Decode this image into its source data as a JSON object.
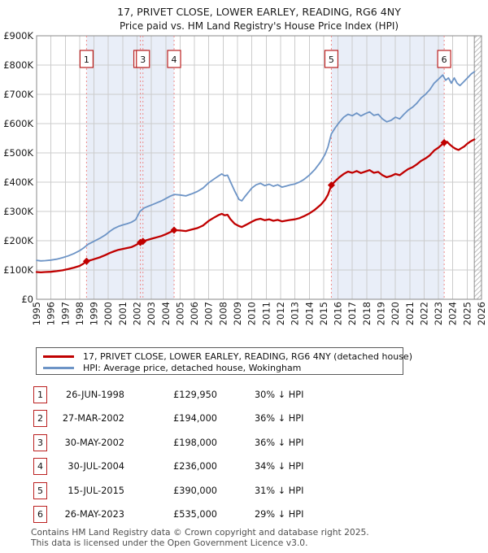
{
  "title": "17, PRIVET CLOSE, LOWER EARLEY, READING, RG6 4NY",
  "subtitle": "Price paid vs. HM Land Registry's House Price Index (HPI)",
  "chart_data": {
    "type": "line",
    "x_range": [
      1995,
      2026
    ],
    "x_tick_labels": [
      "1995",
      "1996",
      "1997",
      "1998",
      "1999",
      "2000",
      "2001",
      "2002",
      "2003",
      "2004",
      "2005",
      "2006",
      "2007",
      "2008",
      "2009",
      "2010",
      "2011",
      "2012",
      "2013",
      "2014",
      "2015",
      "2016",
      "2017",
      "2018",
      "2019",
      "2020",
      "2021",
      "2022",
      "2023",
      "2024",
      "2025",
      "2026"
    ],
    "y_range_gbp": [
      0,
      900000
    ],
    "y_tick_labels": [
      "£0",
      "£100K",
      "£200K",
      "£300K",
      "£400K",
      "£500K",
      "£600K",
      "£700K",
      "£800K",
      "£900K"
    ],
    "units": "GBP thousands",
    "grid": true,
    "legend_position": "bottom",
    "future_hatch_start": 2025.5,
    "ownership_bands": [
      [
        1998.48,
        2004.58
      ],
      [
        2015.54,
        2023.4
      ]
    ],
    "colors": {
      "price": "#c00000",
      "hpi": "#6d94c6",
      "grid": "#cccccc",
      "band": "#e9eef8",
      "dashed": "#ee8a8a",
      "box_border": "#bb2020",
      "plot_border": "#8a8a8a",
      "hatch": "#bbbbbb"
    },
    "sales": [
      {
        "num": "1",
        "date": "26-JUN-1998",
        "year": 1998.48,
        "price_k": 129.95,
        "price_label": "£129,950",
        "vs_hpi": "30% ↓ HPI"
      },
      {
        "num": "2",
        "date": "27-MAR-2002",
        "year": 2002.23,
        "price_k": 194,
        "price_label": "£194,000",
        "vs_hpi": "36% ↓ HPI"
      },
      {
        "num": "3",
        "date": "30-MAY-2002",
        "year": 2002.41,
        "price_k": 198,
        "price_label": "£198,000",
        "vs_hpi": "36% ↓ HPI"
      },
      {
        "num": "4",
        "date": "30-JUL-2004",
        "year": 2004.58,
        "price_k": 236,
        "price_label": "£236,000",
        "vs_hpi": "34% ↓ HPI"
      },
      {
        "num": "5",
        "date": "15-JUL-2015",
        "year": 2015.54,
        "price_k": 390,
        "price_label": "£390,000",
        "vs_hpi": "31% ↓ HPI"
      },
      {
        "num": "6",
        "date": "26-MAY-2023",
        "year": 2023.4,
        "price_k": 535,
        "price_label": "£535,000",
        "vs_hpi": "29% ↓ HPI"
      }
    ],
    "series": [
      {
        "name": "17, PRIVET CLOSE, LOWER EARLEY, READING, RG6 4NY (detached house)",
        "color": "#c00000",
        "points": [
          [
            1995.0,
            93
          ],
          [
            1995.3,
            92
          ],
          [
            1995.6,
            93
          ],
          [
            1996.0,
            94
          ],
          [
            1996.4,
            96
          ],
          [
            1996.8,
            99
          ],
          [
            1997.2,
            103
          ],
          [
            1997.6,
            108
          ],
          [
            1998.0,
            114
          ],
          [
            1998.25,
            121
          ],
          [
            1998.48,
            130
          ],
          [
            1998.8,
            134
          ],
          [
            1999.0,
            137
          ],
          [
            1999.4,
            143
          ],
          [
            1999.8,
            151
          ],
          [
            2000.1,
            158
          ],
          [
            2000.4,
            164
          ],
          [
            2000.7,
            169
          ],
          [
            2001.0,
            172
          ],
          [
            2001.3,
            175
          ],
          [
            2001.6,
            178
          ],
          [
            2001.9,
            185
          ],
          [
            2002.23,
            194
          ],
          [
            2002.41,
            198
          ],
          [
            2002.8,
            204
          ],
          [
            2003.1,
            208
          ],
          [
            2003.4,
            212
          ],
          [
            2003.7,
            216
          ],
          [
            2004.0,
            222
          ],
          [
            2004.3,
            229
          ],
          [
            2004.58,
            236
          ],
          [
            2005.0,
            235
          ],
          [
            2005.4,
            233
          ],
          [
            2005.8,
            238
          ],
          [
            2006.2,
            243
          ],
          [
            2006.6,
            252
          ],
          [
            2007.0,
            268
          ],
          [
            2007.4,
            280
          ],
          [
            2007.7,
            288
          ],
          [
            2007.9,
            292
          ],
          [
            2008.1,
            287
          ],
          [
            2008.3,
            289
          ],
          [
            2008.5,
            274
          ],
          [
            2008.8,
            258
          ],
          [
            2009.1,
            250
          ],
          [
            2009.3,
            247
          ],
          [
            2009.5,
            252
          ],
          [
            2009.7,
            257
          ],
          [
            2010.0,
            265
          ],
          [
            2010.3,
            272
          ],
          [
            2010.6,
            275
          ],
          [
            2010.9,
            270
          ],
          [
            2011.2,
            273
          ],
          [
            2011.5,
            268
          ],
          [
            2011.8,
            271
          ],
          [
            2012.1,
            266
          ],
          [
            2012.4,
            269
          ],
          [
            2012.7,
            271
          ],
          [
            2013.0,
            273
          ],
          [
            2013.3,
            277
          ],
          [
            2013.6,
            283
          ],
          [
            2014.0,
            293
          ],
          [
            2014.4,
            306
          ],
          [
            2014.8,
            323
          ],
          [
            2015.1,
            340
          ],
          [
            2015.3,
            357
          ],
          [
            2015.54,
            390
          ],
          [
            2015.8,
            403
          ],
          [
            2016.1,
            417
          ],
          [
            2016.4,
            428
          ],
          [
            2016.7,
            436
          ],
          [
            2017.0,
            432
          ],
          [
            2017.3,
            438
          ],
          [
            2017.6,
            431
          ],
          [
            2017.9,
            436
          ],
          [
            2018.2,
            441
          ],
          [
            2018.5,
            432
          ],
          [
            2018.8,
            435
          ],
          [
            2019.1,
            424
          ],
          [
            2019.4,
            417
          ],
          [
            2019.7,
            421
          ],
          [
            2020.0,
            428
          ],
          [
            2020.3,
            424
          ],
          [
            2020.6,
            435
          ],
          [
            2020.9,
            445
          ],
          [
            2021.2,
            451
          ],
          [
            2021.5,
            461
          ],
          [
            2021.8,
            473
          ],
          [
            2022.1,
            481
          ],
          [
            2022.4,
            492
          ],
          [
            2022.7,
            508
          ],
          [
            2023.0,
            518
          ],
          [
            2023.4,
            535
          ],
          [
            2023.6,
            538
          ],
          [
            2023.8,
            528
          ],
          [
            2024.0,
            520
          ],
          [
            2024.2,
            514
          ],
          [
            2024.4,
            510
          ],
          [
            2024.6,
            516
          ],
          [
            2024.8,
            522
          ],
          [
            2025.0,
            531
          ],
          [
            2025.2,
            538
          ],
          [
            2025.5,
            546
          ]
        ]
      },
      {
        "name": "HPI: Average price, detached house, Wokingham",
        "color": "#6d94c6",
        "points": [
          [
            1995.0,
            133
          ],
          [
            1995.3,
            131
          ],
          [
            1995.6,
            132
          ],
          [
            1996.0,
            134
          ],
          [
            1996.4,
            137
          ],
          [
            1996.8,
            142
          ],
          [
            1997.2,
            148
          ],
          [
            1997.6,
            156
          ],
          [
            1998.0,
            166
          ],
          [
            1998.3,
            176
          ],
          [
            1998.6,
            188
          ],
          [
            1999.0,
            198
          ],
          [
            1999.4,
            208
          ],
          [
            1999.8,
            220
          ],
          [
            2000.1,
            232
          ],
          [
            2000.4,
            242
          ],
          [
            2000.7,
            249
          ],
          [
            2001.0,
            254
          ],
          [
            2001.3,
            258
          ],
          [
            2001.6,
            263
          ],
          [
            2001.9,
            272
          ],
          [
            2002.2,
            300
          ],
          [
            2002.5,
            312
          ],
          [
            2002.8,
            318
          ],
          [
            2003.1,
            324
          ],
          [
            2003.4,
            330
          ],
          [
            2003.7,
            336
          ],
          [
            2004.0,
            344
          ],
          [
            2004.3,
            352
          ],
          [
            2004.6,
            358
          ],
          [
            2005.0,
            356
          ],
          [
            2005.4,
            353
          ],
          [
            2005.8,
            360
          ],
          [
            2006.2,
            368
          ],
          [
            2006.6,
            380
          ],
          [
            2007.0,
            398
          ],
          [
            2007.4,
            412
          ],
          [
            2007.7,
            422
          ],
          [
            2007.9,
            428
          ],
          [
            2008.1,
            422
          ],
          [
            2008.3,
            424
          ],
          [
            2008.5,
            402
          ],
          [
            2008.8,
            370
          ],
          [
            2009.1,
            341
          ],
          [
            2009.3,
            336
          ],
          [
            2009.5,
            350
          ],
          [
            2009.7,
            362
          ],
          [
            2010.0,
            380
          ],
          [
            2010.3,
            391
          ],
          [
            2010.6,
            396
          ],
          [
            2010.9,
            388
          ],
          [
            2011.2,
            393
          ],
          [
            2011.5,
            386
          ],
          [
            2011.8,
            391
          ],
          [
            2012.1,
            383
          ],
          [
            2012.4,
            387
          ],
          [
            2012.7,
            391
          ],
          [
            2013.0,
            394
          ],
          [
            2013.3,
            400
          ],
          [
            2013.6,
            408
          ],
          [
            2014.0,
            424
          ],
          [
            2014.4,
            444
          ],
          [
            2014.8,
            470
          ],
          [
            2015.1,
            495
          ],
          [
            2015.3,
            520
          ],
          [
            2015.54,
            565
          ],
          [
            2015.8,
            585
          ],
          [
            2016.1,
            605
          ],
          [
            2016.4,
            622
          ],
          [
            2016.7,
            632
          ],
          [
            2017.0,
            627
          ],
          [
            2017.3,
            636
          ],
          [
            2017.6,
            626
          ],
          [
            2017.9,
            634
          ],
          [
            2018.2,
            640
          ],
          [
            2018.5,
            628
          ],
          [
            2018.8,
            632
          ],
          [
            2019.1,
            616
          ],
          [
            2019.4,
            606
          ],
          [
            2019.7,
            611
          ],
          [
            2020.0,
            622
          ],
          [
            2020.3,
            616
          ],
          [
            2020.6,
            632
          ],
          [
            2020.9,
            646
          ],
          [
            2021.2,
            656
          ],
          [
            2021.5,
            670
          ],
          [
            2021.8,
            688
          ],
          [
            2022.1,
            700
          ],
          [
            2022.4,
            716
          ],
          [
            2022.7,
            738
          ],
          [
            2023.0,
            752
          ],
          [
            2023.3,
            766
          ],
          [
            2023.5,
            748
          ],
          [
            2023.7,
            756
          ],
          [
            2023.9,
            738
          ],
          [
            2024.1,
            756
          ],
          [
            2024.3,
            738
          ],
          [
            2024.5,
            730
          ],
          [
            2024.7,
            740
          ],
          [
            2024.9,
            750
          ],
          [
            2025.1,
            760
          ],
          [
            2025.3,
            770
          ],
          [
            2025.5,
            777
          ]
        ]
      }
    ]
  },
  "footer": {
    "line1": "Contains HM Land Registry data © Crown copyright and database right 2025.",
    "line2": "This data is licensed under the Open Government Licence v3.0."
  }
}
